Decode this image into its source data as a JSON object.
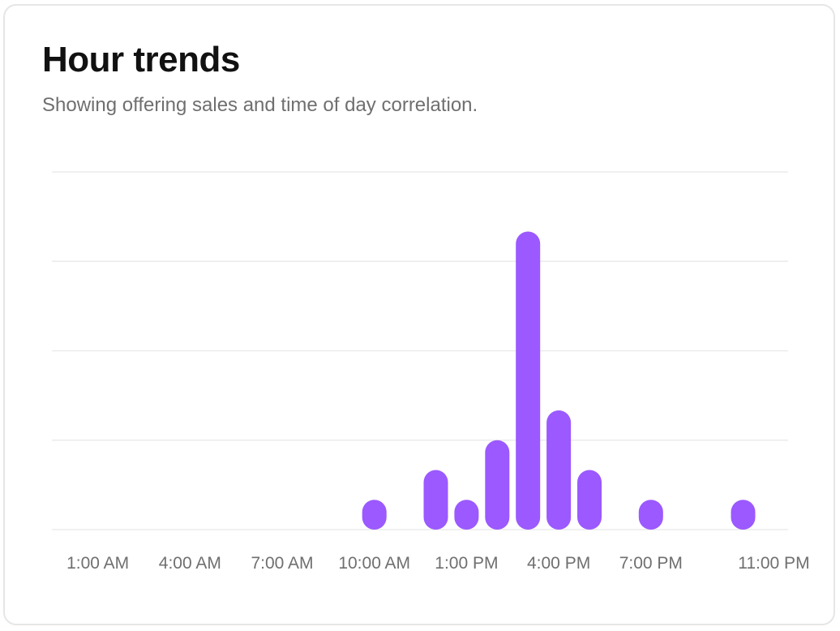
{
  "card": {
    "title": "Hour trends",
    "subtitle": "Showing offering sales and time of day correlation."
  },
  "colors": {
    "bar": "#9b59ff",
    "grid": "#ebebeb",
    "text_muted": "#6f6f6f",
    "border": "#e6e6e6"
  },
  "chart_data": {
    "type": "bar",
    "categories": [
      "1:00 AM",
      "2:00 AM",
      "3:00 AM",
      "4:00 AM",
      "5:00 AM",
      "6:00 AM",
      "7:00 AM",
      "8:00 AM",
      "9:00 AM",
      "10:00 AM",
      "11:00 AM",
      "12:00 PM",
      "1:00 PM",
      "2:00 PM",
      "3:00 PM",
      "4:00 PM",
      "5:00 PM",
      "6:00 PM",
      "7:00 PM",
      "8:00 PM",
      "9:00 PM",
      "10:00 PM",
      "11:00 PM"
    ],
    "values": [
      0,
      0,
      0,
      0,
      0,
      0,
      0,
      0,
      0,
      1,
      0,
      2,
      1,
      3,
      10,
      4,
      2,
      0,
      1,
      0,
      0,
      1,
      0
    ],
    "tick_labels": [
      "1:00 AM",
      "4:00 AM",
      "7:00 AM",
      "10:00 AM",
      "1:00 PM",
      "4:00 PM",
      "7:00 PM",
      "11:00 PM"
    ],
    "tick_categories": [
      0,
      3,
      6,
      9,
      12,
      15,
      18,
      22
    ],
    "ylim": [
      0,
      12
    ],
    "y_gridlines": [
      0,
      3,
      6,
      9,
      12
    ],
    "grid": true,
    "legend": "none",
    "xlabel": "",
    "ylabel": ""
  }
}
